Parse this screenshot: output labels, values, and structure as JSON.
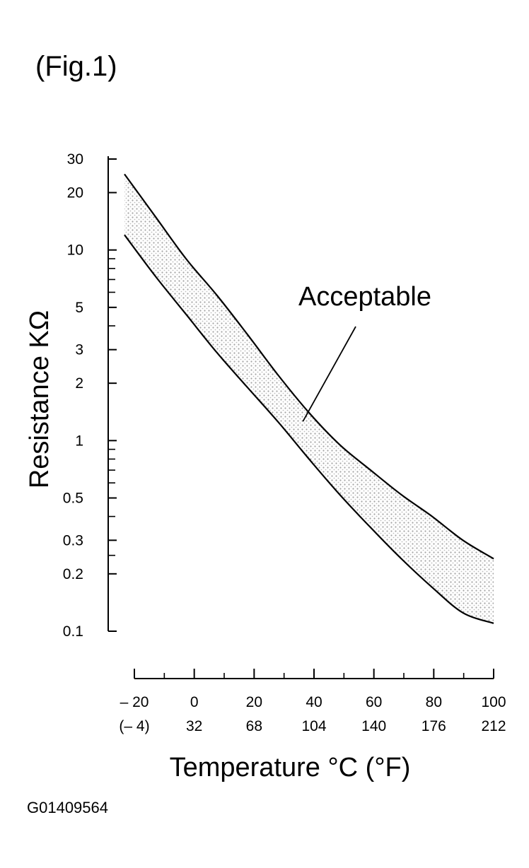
{
  "figure_label": "(Fig.1)",
  "figure_code": "G01409564",
  "chart_data": {
    "type": "area",
    "title": "",
    "ylabel": "Resistance KΩ",
    "xlabel": "Temperature °C (°F)",
    "y_scale": "log",
    "ylim": [
      0.1,
      30
    ],
    "y_ticks": [
      {
        "value": 30,
        "label": "30"
      },
      {
        "value": 20,
        "label": "20"
      },
      {
        "value": 10,
        "label": "10"
      },
      {
        "value": 5,
        "label": "5"
      },
      {
        "value": 3,
        "label": "3"
      },
      {
        "value": 2,
        "label": "2"
      },
      {
        "value": 1,
        "label": "1"
      },
      {
        "value": 0.5,
        "label": "0.5"
      },
      {
        "value": 0.3,
        "label": "0.3"
      },
      {
        "value": 0.2,
        "label": "0.2"
      },
      {
        "value": 0.1,
        "label": "0.1"
      }
    ],
    "y_minor_ticks": [
      9,
      8,
      7,
      6,
      4,
      0.9,
      0.8,
      0.7,
      0.6,
      0.4,
      0.25
    ],
    "xlim": [
      -20,
      100
    ],
    "x_ticks": [
      {
        "value": -20,
        "c": "– 20",
        "f": "(– 4)"
      },
      {
        "value": 0,
        "c": "0",
        "f": "32"
      },
      {
        "value": 20,
        "c": "20",
        "f": "68"
      },
      {
        "value": 40,
        "c": "40",
        "f": "104"
      },
      {
        "value": 60,
        "c": "60",
        "f": "140"
      },
      {
        "value": 80,
        "c": "80",
        "f": "176"
      },
      {
        "value": 100,
        "c": "100",
        "f": "212"
      }
    ],
    "grid": false,
    "series": [
      {
        "x": [
          -20,
          -10,
          0,
          10,
          20,
          30,
          40,
          50,
          60,
          70,
          80,
          90,
          100
        ],
        "y": [
          25,
          15,
          9,
          5.8,
          3.6,
          2.2,
          1.4,
          0.95,
          0.7,
          0.52,
          0.4,
          0.3,
          0.24
        ]
      },
      {
        "x": [
          -20,
          -10,
          0,
          10,
          20,
          30,
          40,
          50,
          60,
          70,
          80,
          90,
          100
        ],
        "y": [
          12,
          7.3,
          4.6,
          2.9,
          1.9,
          1.25,
          0.8,
          0.52,
          0.35,
          0.24,
          0.17,
          0.125,
          0.11
        ]
      }
    ],
    "band_color": "#cfcfcf",
    "line_color": "#000000",
    "annotation": {
      "text": "Acceptable",
      "x": 38,
      "y": 1.35
    }
  }
}
